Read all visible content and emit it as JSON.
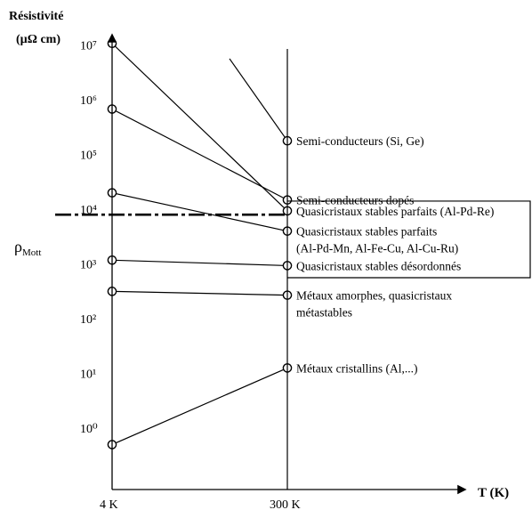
{
  "chart_data": {
    "type": "line",
    "title": "",
    "ylabel_line1": "Résistivité",
    "ylabel_line2": "(µΩ cm)",
    "xlabel": "T (K)",
    "x_categories": [
      "4 K",
      "300 K"
    ],
    "y_scale": "log",
    "y_ticks": [
      "10⁷",
      "10⁶",
      "10⁵",
      "10⁴",
      "10³",
      "10²",
      "10¹",
      "10⁰"
    ],
    "rho_mott_label": "ρ",
    "rho_mott_sub": "Mott",
    "rho_mott_log": 3.85,
    "series": [
      {
        "name": "Semi-conducteurs (Si, Ge)",
        "values": [
          null,
          5.2
        ],
        "lead_log": 6.7
      },
      {
        "name": "Semi-conducteurs dopés",
        "values": [
          5.78,
          4.12
        ]
      },
      {
        "name": "Quasicristaux stables parfaits (Al-Pd-Re)",
        "values": [
          6.98,
          3.92
        ]
      },
      {
        "name": "Quasicristaux stables parfaits",
        "name_line2": "(Al-Pd-Mn, Al-Fe-Cu, Al-Cu-Ru)",
        "values": [
          4.25,
          3.55
        ]
      },
      {
        "name": "Quasicristaux stables désordonnés",
        "values": [
          3.02,
          2.92
        ]
      },
      {
        "name": "Métaux amorphes, quasicristaux",
        "name_line2": "métastables",
        "values": [
          2.45,
          2.38
        ]
      },
      {
        "name": "Métaux cristallins (Al,...)",
        "values": [
          -0.35,
          1.05
        ]
      }
    ]
  }
}
